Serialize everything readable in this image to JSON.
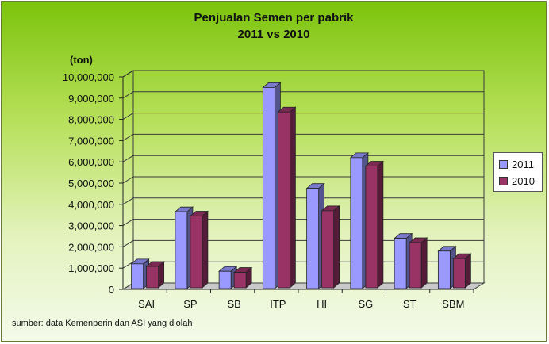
{
  "title_line1": "Penjualan Semen per pabrik",
  "title_line2": "2011 vs 2010",
  "source_note": "sumber: data Kemenperin dan ASI yang diolah",
  "colors": {
    "s2011": "#9999ff",
    "s2010": "#993366",
    "background_top": "#7cc40c",
    "background_bottom": "#f4faea"
  },
  "chart_data": {
    "type": "bar",
    "title": "Penjualan Semen per pabrik 2011 vs 2010",
    "ylabel": "(ton)",
    "xlabel": "",
    "ylim": [
      0,
      10000000
    ],
    "ytick_step": 1000000,
    "ytick_labels": [
      "0",
      "1,000,000",
      "2,000,000",
      "3,000,000",
      "4,000,000",
      "5,000,000",
      "6,000,000",
      "7,000,000",
      "8,000,000",
      "9,000,000",
      "10,000,000"
    ],
    "categories": [
      "SAI",
      "SP",
      "SB",
      "ITP",
      "HI",
      "SG",
      "ST",
      "SBM"
    ],
    "series": [
      {
        "name": "2011",
        "values": [
          1200000,
          3650000,
          850000,
          9500000,
          4750000,
          6200000,
          2400000,
          1800000
        ]
      },
      {
        "name": "2010",
        "values": [
          1080000,
          3450000,
          800000,
          8350000,
          3700000,
          5800000,
          2200000,
          1450000
        ]
      }
    ],
    "legend": "right",
    "grid": true
  }
}
